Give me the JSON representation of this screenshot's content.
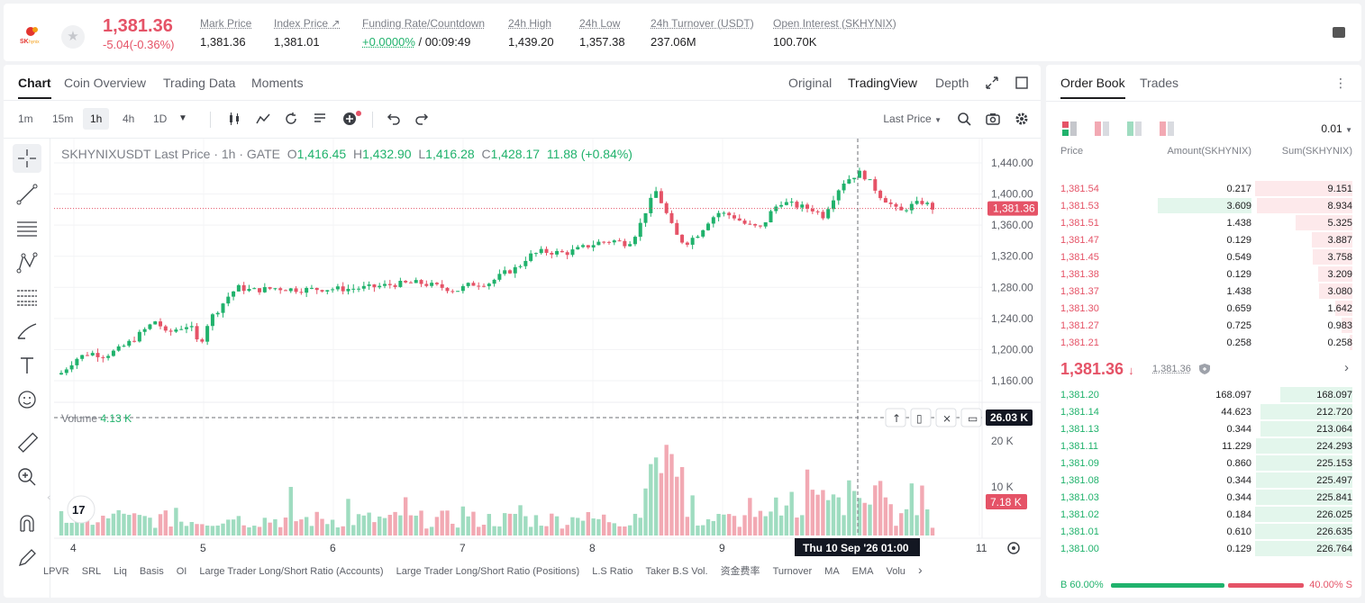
{
  "ticker": {
    "last_price": "1,381.36",
    "change": "-5.04(-0.36%)",
    "stats": [
      {
        "label": "Mark Price",
        "value": "1,381.36"
      },
      {
        "label": "Index Price ↗",
        "value": "1,381.01"
      },
      {
        "label": "Funding Rate/Countdown",
        "value_green": "+0.0000%",
        "value": " / 00:09:49"
      },
      {
        "label": "24h High",
        "value": "1,439.20"
      },
      {
        "label": "24h Low",
        "value": "1,357.38"
      },
      {
        "label": "24h Turnover (USDT)",
        "value": "237.06M"
      },
      {
        "label": "Open Interest (SKHYNIX)",
        "value": "100.70K"
      }
    ]
  },
  "chart_tabs": [
    "Chart",
    "Coin Overview",
    "Trading Data",
    "Moments"
  ],
  "view_tabs": [
    "Original",
    "TradingView",
    "Depth"
  ],
  "timeframes": [
    "1m",
    "15m",
    "1h",
    "4h",
    "1D"
  ],
  "price_source": "Last Price",
  "legend": {
    "title": "SKHYNIXUSDT Last Price · 1h · GATE",
    "o_label": "O",
    "o": "1,416.45",
    "h_label": "H",
    "h": "1,432.90",
    "l_label": "L",
    "l": "1,416.28",
    "c_label": "C",
    "c": "1,428.17",
    "chg": "11.88 (+0.84%)"
  },
  "volume_legend": {
    "label": "Volume",
    "value": "4.13 K"
  },
  "price_axis": [
    "1,440.00",
    "1,400.00",
    "1,360.00",
    "1,320.00",
    "1,280.00",
    "1,240.00",
    "1,200.00",
    "1,160.00"
  ],
  "price_tag": "1,381.36",
  "volume_axis": [
    "20 K",
    "10 K"
  ],
  "volume_tag_top": "26.03 K",
  "volume_tag_cur": "7.18 K",
  "time_axis": [
    "4",
    "5",
    "6",
    "7",
    "8",
    "9",
    "11"
  ],
  "crosshair_label": "Thu 10 Sep '26   01:00",
  "indicators": [
    "LPVR",
    "SRL",
    "Liq",
    "Basis",
    "OI",
    "Large Trader Long/Short Ratio (Accounts)",
    "Large Trader Long/Short Ratio (Positions)",
    "L.S Ratio",
    "Taker B.S Vol.",
    "资金费率",
    "Turnover",
    "MA",
    "EMA",
    "Volu"
  ],
  "order_book": {
    "tabs": [
      "Order Book",
      "Trades"
    ],
    "precision": "0.01",
    "headers": {
      "price": "Price",
      "amount": "Amount(SKHYNIX)",
      "sum": "Sum(SKHYNIX)"
    },
    "asks": [
      {
        "price": "1,381.54",
        "amount": "0.217",
        "sum": "9.151",
        "depth": 1.0,
        "amt_frac": 0.0
      },
      {
        "price": "1,381.53",
        "amount": "3.609",
        "sum": "8.934",
        "depth": 0.98,
        "amt_frac": 0.95
      },
      {
        "price": "1,381.51",
        "amount": "1.438",
        "sum": "5.325",
        "depth": 0.58,
        "amt_frac": 0.0
      },
      {
        "price": "1,381.47",
        "amount": "0.129",
        "sum": "3.887",
        "depth": 0.42,
        "amt_frac": 0.0
      },
      {
        "price": "1,381.45",
        "amount": "0.549",
        "sum": "3.758",
        "depth": 0.41,
        "amt_frac": 0.0
      },
      {
        "price": "1,381.38",
        "amount": "0.129",
        "sum": "3.209",
        "depth": 0.35,
        "amt_frac": 0.0
      },
      {
        "price": "1,381.37",
        "amount": "1.438",
        "sum": "3.080",
        "depth": 0.34,
        "amt_frac": 0.0
      },
      {
        "price": "1,381.30",
        "amount": "0.659",
        "sum": "1.642",
        "depth": 0.18,
        "amt_frac": 0.0
      },
      {
        "price": "1,381.27",
        "amount": "0.725",
        "sum": "0.983",
        "depth": 0.11,
        "amt_frac": 0.0
      },
      {
        "price": "1,381.21",
        "amount": "0.258",
        "sum": "0.258",
        "depth": 0.03,
        "amt_frac": 0.0
      }
    ],
    "mid_price": "1,381.36",
    "mid_mark": "1,381.36",
    "bids": [
      {
        "price": "1,381.20",
        "amount": "168.097",
        "sum": "168.097",
        "depth": 0.74
      },
      {
        "price": "1,381.14",
        "amount": "44.623",
        "sum": "212.720",
        "depth": 0.94
      },
      {
        "price": "1,381.13",
        "amount": "0.344",
        "sum": "213.064",
        "depth": 0.94
      },
      {
        "price": "1,381.11",
        "amount": "11.229",
        "sum": "224.293",
        "depth": 0.99
      },
      {
        "price": "1,381.09",
        "amount": "0.860",
        "sum": "225.153",
        "depth": 0.99
      },
      {
        "price": "1,381.08",
        "amount": "0.344",
        "sum": "225.497",
        "depth": 0.99
      },
      {
        "price": "1,381.03",
        "amount": "0.344",
        "sum": "225.841",
        "depth": 0.995
      },
      {
        "price": "1,381.02",
        "amount": "0.184",
        "sum": "226.025",
        "depth": 0.997
      },
      {
        "price": "1,381.01",
        "amount": "0.610",
        "sum": "226.635",
        "depth": 0.999
      },
      {
        "price": "1,381.00",
        "amount": "0.129",
        "sum": "226.764",
        "depth": 1.0
      }
    ],
    "buy_ratio": "B 60.00%",
    "sell_ratio": "40.00% S",
    "buy_fraction": 0.6
  },
  "colors": {
    "up": "#20b26c",
    "down": "#e55367",
    "up_vol": "#9fdcc0",
    "down_vol": "#f2a9b3"
  }
}
